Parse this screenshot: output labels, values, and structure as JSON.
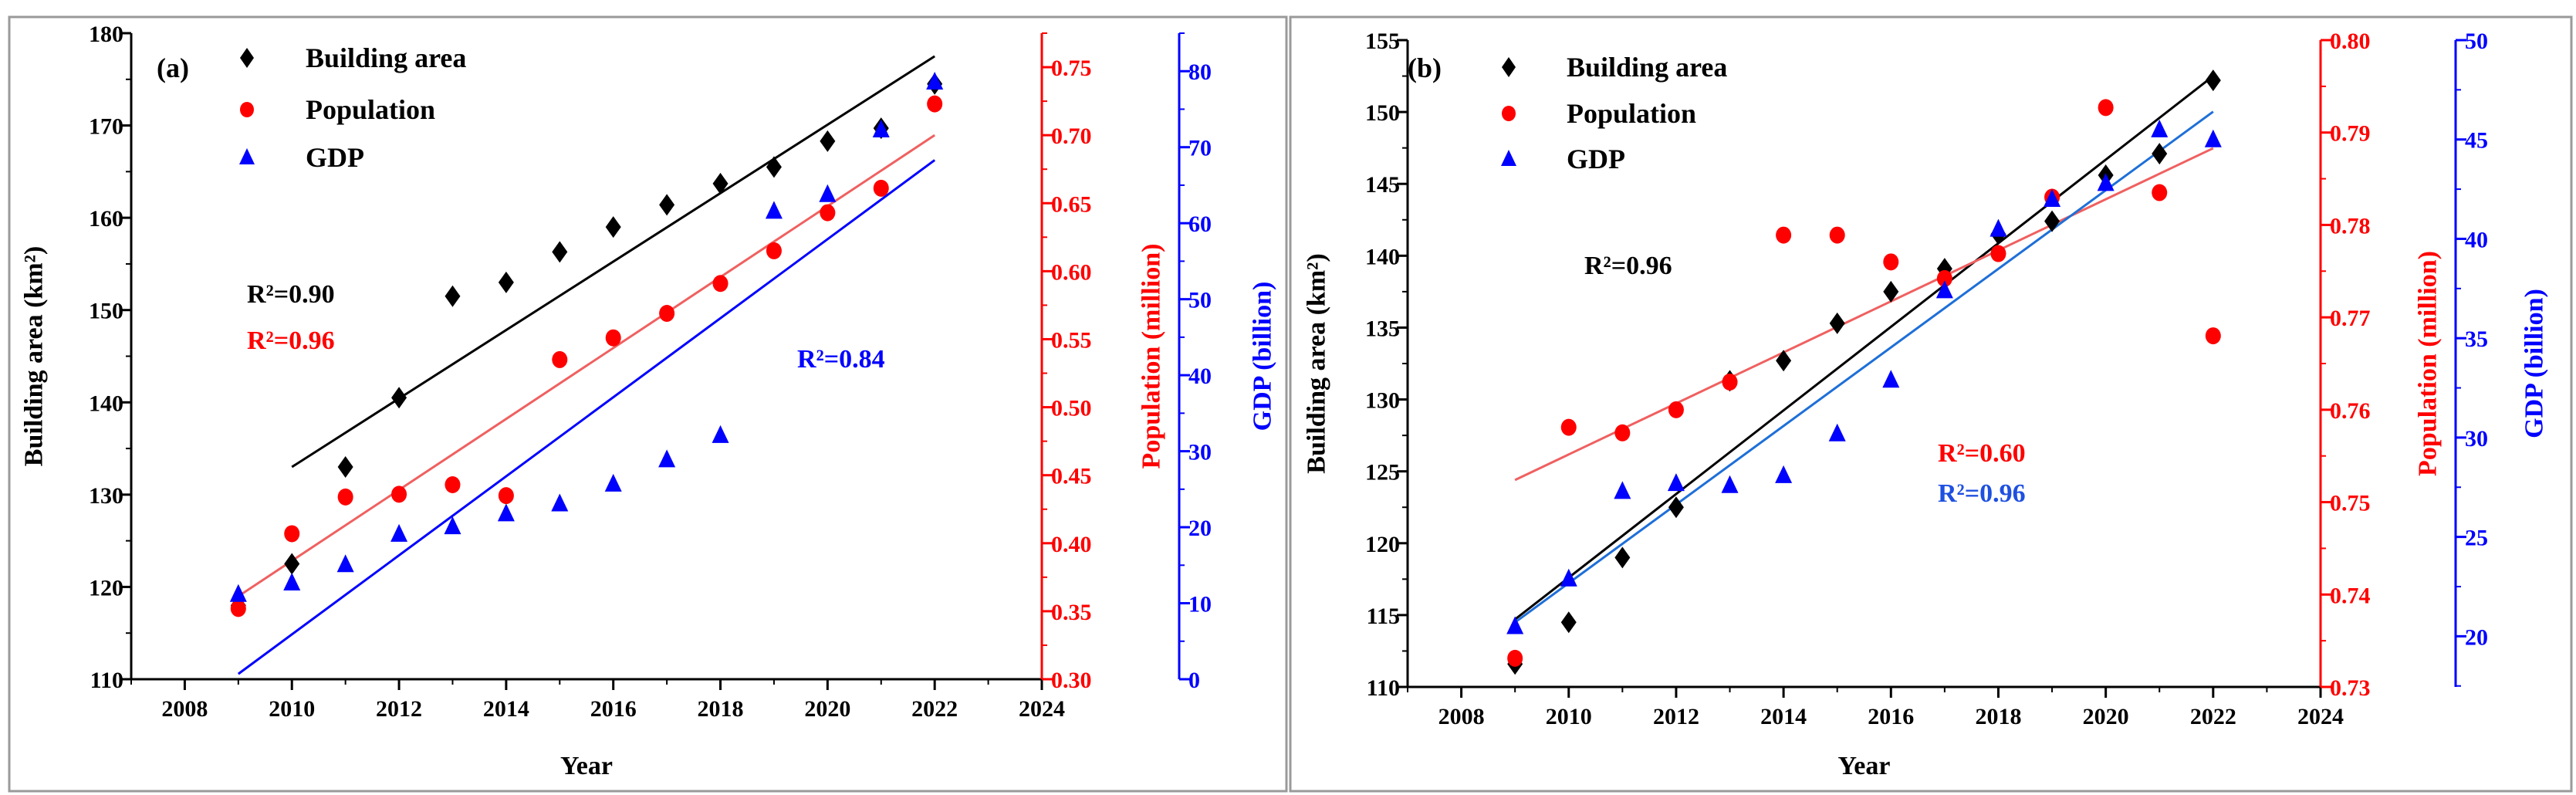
{
  "chart_data": [
    {
      "type": "scatter",
      "panel_label": "(a)",
      "xlabel": "Year",
      "x_ticks": [
        2008,
        2010,
        2012,
        2014,
        2016,
        2018,
        2020,
        2022,
        2024
      ],
      "xlim": [
        2007,
        2024
      ],
      "axes": {
        "left": {
          "label": "Building area (km²)",
          "lim": [
            110,
            180
          ],
          "ticks": [
            110,
            120,
            130,
            140,
            150,
            160,
            170,
            180
          ],
          "decimals": 0,
          "color": "#000000"
        },
        "pop": {
          "label": "Population (million)",
          "lim": [
            0.3,
            0.775
          ],
          "ticks": [
            0.3,
            0.35,
            0.4,
            0.45,
            0.5,
            0.55,
            0.6,
            0.65,
            0.7,
            0.75
          ],
          "decimals": 2,
          "color": "#ff0000"
        },
        "gdp": {
          "label": "GDP (billion)",
          "lim": [
            0,
            85
          ],
          "ticks": [
            0,
            10,
            20,
            30,
            40,
            50,
            60,
            70,
            80
          ],
          "decimals": 0,
          "color": "#0000ff"
        }
      },
      "x": [
        2009,
        2010,
        2011,
        2012,
        2013,
        2014,
        2015,
        2016,
        2017,
        2018,
        2019,
        2020,
        2021,
        2022
      ],
      "series": [
        {
          "name": "Building area",
          "axis": "left",
          "marker": "diamond",
          "color": "#000000",
          "values": [
            118.0,
            122.5,
            133.0,
            140.5,
            151.5,
            153.0,
            156.3,
            159.0,
            161.4,
            163.7,
            165.5,
            168.3,
            169.7,
            174.5
          ],
          "fit": {
            "x": [
              2010,
              2022
            ],
            "y": [
              133.0,
              177.5
            ],
            "color": "#000000"
          },
          "r2": "R²=0.90"
        },
        {
          "name": "Population",
          "axis": "pop",
          "marker": "circle",
          "color": "#ff0000",
          "values": [
            0.352,
            0.407,
            0.434,
            0.436,
            0.443,
            0.435,
            0.535,
            0.551,
            0.569,
            0.591,
            0.615,
            0.643,
            0.661,
            0.723
          ],
          "fit": {
            "x": [
              2009,
              2022
            ],
            "y": [
              0.361,
              0.7
            ],
            "color": "#f06060"
          },
          "r2": "R²=0.96"
        },
        {
          "name": "GDP",
          "axis": "gdp",
          "marker": "triangle",
          "color": "#0000ff",
          "values": [
            11.2,
            12.7,
            15.1,
            19.1,
            20.1,
            21.8,
            23.1,
            25.7,
            28.9,
            32.1,
            61.6,
            63.8,
            72.3,
            78.6
          ],
          "fit": {
            "x": [
              2009,
              2022
            ],
            "y": [
              0.7,
              68.3
            ],
            "color": "#0000ff"
          },
          "r2": "R²=0.84"
        }
      ]
    },
    {
      "type": "scatter",
      "panel_label": "(b)",
      "xlabel": "Year",
      "x_ticks": [
        2008,
        2010,
        2012,
        2014,
        2016,
        2018,
        2020,
        2022,
        2024
      ],
      "xlim": [
        2007,
        2024
      ],
      "axes": {
        "left": {
          "label": "Building area (km²)",
          "lim": [
            110,
            155
          ],
          "ticks": [
            110,
            115,
            120,
            125,
            130,
            135,
            140,
            145,
            150,
            155
          ],
          "decimals": 0,
          "color": "#000000"
        },
        "pop": {
          "label": "Population (million)",
          "lim": [
            0.73,
            0.8
          ],
          "ticks": [
            0.73,
            0.74,
            0.75,
            0.76,
            0.77,
            0.78,
            0.79,
            0.8
          ],
          "decimals": 2,
          "color": "#ff0000"
        },
        "gdp": {
          "label": "GDP (billion)",
          "lim": [
            17.45,
            50
          ],
          "ticks": [
            20,
            25,
            30,
            35,
            40,
            45,
            50
          ],
          "decimals": 0,
          "color": "#0000ff"
        }
      },
      "x": [
        2009,
        2010,
        2011,
        2012,
        2013,
        2014,
        2015,
        2016,
        2017,
        2018,
        2019,
        2020,
        2021,
        2022
      ],
      "series": [
        {
          "name": "Building area",
          "axis": "left",
          "marker": "diamond",
          "color": "#000000",
          "values": [
            111.6,
            114.5,
            119.0,
            122.5,
            131.3,
            132.7,
            135.3,
            137.5,
            139.1,
            141.5,
            142.4,
            145.6,
            147.1,
            152.2
          ],
          "fit": {
            "x": [
              2009,
              2022
            ],
            "y": [
              114.7,
              152.5
            ],
            "color": "#000000"
          },
          "r2": "R²=0.96"
        },
        {
          "name": "Population",
          "axis": "pop",
          "marker": "circle",
          "color": "#ff0000",
          "values": [
            0.7331,
            0.7581,
            0.7575,
            0.76,
            0.763,
            0.7789,
            0.7789,
            0.776,
            0.7742,
            0.7769,
            0.783,
            0.7927,
            0.7835,
            0.768
          ],
          "fit": {
            "x": [
              2009,
              2022
            ],
            "y": [
              0.7524,
              0.7883
            ],
            "color": "#f06060"
          },
          "r2": "R²=0.60"
        },
        {
          "name": "GDP",
          "axis": "gdp",
          "marker": "triangle",
          "color": "#0000ff",
          "values": [
            20.5,
            22.9,
            27.3,
            27.7,
            27.6,
            28.1,
            30.2,
            32.9,
            37.4,
            40.5,
            42.0,
            42.8,
            45.5,
            45.0
          ],
          "fit": {
            "x": [
              2009,
              2022
            ],
            "y": [
              20.7,
              46.4
            ],
            "color": "#1e6fd8"
          },
          "r2": "R²=0.96"
        }
      ]
    }
  ]
}
